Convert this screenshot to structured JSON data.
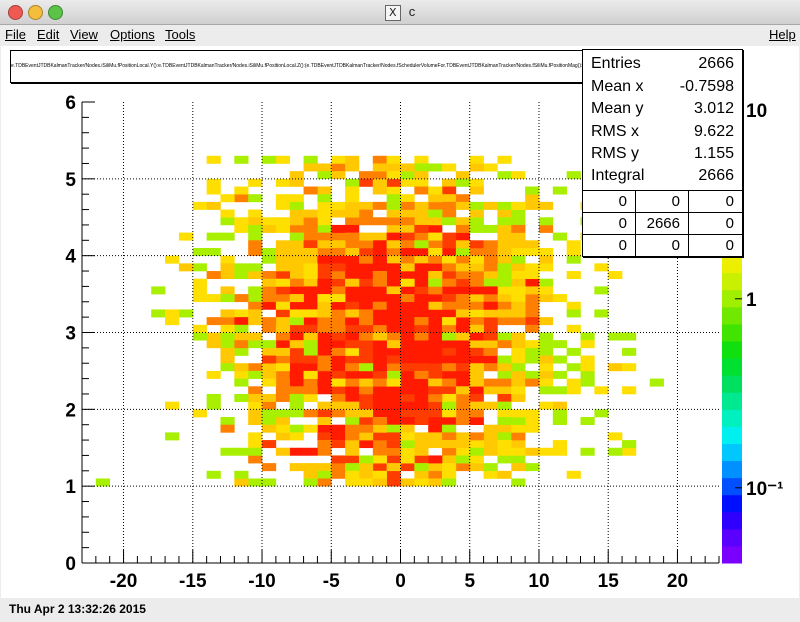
{
  "window": {
    "title": "c"
  },
  "menu": {
    "file": "File",
    "edit": "Edit",
    "view": "View",
    "options": "Options",
    "tools": "Tools",
    "help": "Help"
  },
  "title_box": {
    "text": "e.TDBEventJTDBKalmanTracker/Nodes.iSiliMu.fPositionLocal.Y():e.TDBEventJTDBKalmanTracker/Nodes.iSiliMu.fPositionLocal.Z():(e.TDBEventJTDBKalmanTracker/Nodes.fSchedulerVolumeFor.TDBEventJTDBKalmanTracker/Nodes.fSiliMu.fPositionMag()>0)"
  },
  "stats": {
    "rows": [
      {
        "label": "Entries",
        "value": "2666"
      },
      {
        "label": "Mean x",
        "value": "-0.7598"
      },
      {
        "label": "Mean y",
        "value": "3.012"
      },
      {
        "label": "RMS x",
        "value": "9.622"
      },
      {
        "label": "RMS y",
        "value": "1.155"
      },
      {
        "label": "Integral",
        "value": "2666"
      }
    ],
    "overflow": [
      [
        "0",
        "0",
        "0"
      ],
      [
        "0",
        "2666",
        "0"
      ],
      [
        "0",
        "0",
        "0"
      ]
    ]
  },
  "status": {
    "date": "Thu Apr  2 13:32:26 2015"
  },
  "chart_data": {
    "type": "heatmap",
    "xlim": [
      -23,
      23
    ],
    "ylim": [
      0,
      6
    ],
    "x_ticks": [
      "-20",
      "-15",
      "-10",
      "-5",
      "0",
      "5",
      "10",
      "15",
      "20"
    ],
    "y_ticks": [
      "0",
      "1",
      "2",
      "3",
      "4",
      "5",
      "6"
    ],
    "x_tick_values": [
      -20,
      -15,
      -10,
      -5,
      0,
      5,
      10,
      15,
      20
    ],
    "y_tick_values": [
      0,
      1,
      2,
      3,
      4,
      5,
      6
    ],
    "grid": true,
    "log_z": true,
    "z_labels": [
      "10",
      "1",
      "10⁻¹"
    ],
    "z_label_values": [
      10,
      1,
      0.1
    ],
    "z_range": [
      0.04,
      11
    ],
    "bins_x": 46,
    "bins_y": 60,
    "bin_x_range": [
      -23,
      23
    ],
    "bin_y_range": [
      0,
      6
    ],
    "mean_x": -0.7598,
    "mean_y": 3.012,
    "rms_x": 9.622,
    "rms_y": 1.155,
    "entries": 2666
  }
}
